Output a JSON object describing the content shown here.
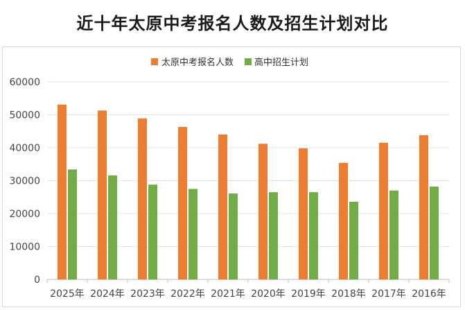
{
  "title": "近十年太原中考报名人数及招生计划对比",
  "chart_data": {
    "type": "bar",
    "categories": [
      "2025年",
      "2024年",
      "2023年",
      "2022年",
      "2021年",
      "2020年",
      "2019年",
      "2018年",
      "2017年",
      "2016年"
    ],
    "series": [
      {
        "name": "太原中考报名人数",
        "color": "#ED7D31",
        "values": [
          53100,
          51300,
          48900,
          46300,
          44000,
          41200,
          39800,
          35400,
          41500,
          43800
        ]
      },
      {
        "name": "高中招生计划",
        "color": "#70AD47",
        "values": [
          33400,
          31600,
          28800,
          27500,
          26100,
          26500,
          26500,
          23600,
          27000,
          28200
        ]
      }
    ],
    "ylim": [
      0,
      60000
    ],
    "yticks": [
      0,
      10000,
      20000,
      30000,
      40000,
      50000,
      60000
    ],
    "grid": true,
    "legend": "top-center"
  }
}
